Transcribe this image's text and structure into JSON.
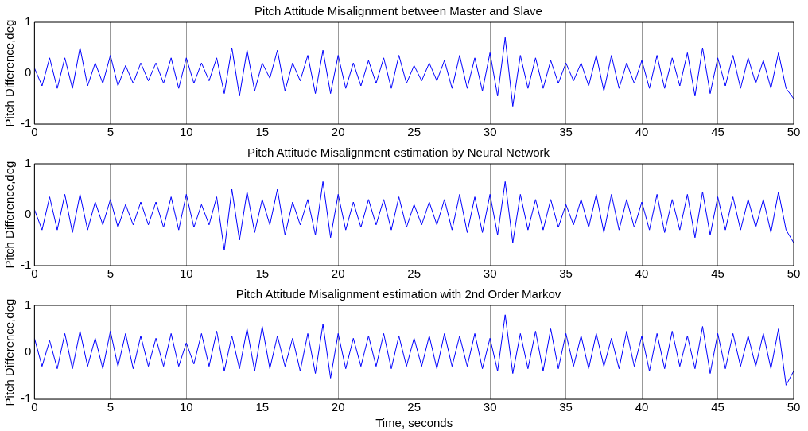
{
  "chart_data": [
    {
      "type": "line",
      "title": "Pitch Attitude Misalignment between Master and Slave",
      "ylabel": "Pitch Difference,deg",
      "grid": "x",
      "xlim": [
        0,
        50
      ],
      "xticks": [
        0,
        5,
        10,
        15,
        20,
        25,
        30,
        35,
        40,
        45,
        50
      ],
      "ylim": [
        -1,
        1
      ],
      "yticks": [
        -1,
        0,
        1
      ],
      "x": [
        0,
        0.5,
        1,
        1.5,
        2,
        2.5,
        3,
        3.5,
        4,
        4.5,
        5,
        5.5,
        6,
        6.5,
        7,
        7.5,
        8,
        8.5,
        9,
        9.5,
        10,
        10.5,
        11,
        11.5,
        12,
        12.5,
        13,
        13.5,
        14,
        14.5,
        15,
        15.5,
        16,
        16.5,
        17,
        17.5,
        18,
        18.5,
        19,
        19.5,
        20,
        20.5,
        21,
        21.5,
        22,
        22.5,
        23,
        23.5,
        24,
        24.5,
        25,
        25.5,
        26,
        26.5,
        27,
        27.5,
        28,
        28.5,
        29,
        29.5,
        30,
        30.5,
        31,
        31.5,
        32,
        32.5,
        33,
        33.5,
        34,
        34.5,
        35,
        35.5,
        36,
        36.5,
        37,
        37.5,
        38,
        38.5,
        39,
        39.5,
        40,
        40.5,
        41,
        41.5,
        42,
        42.5,
        43,
        43.5,
        44,
        44.5,
        45,
        45.5,
        46,
        46.5,
        47,
        47.5,
        48,
        48.5,
        49,
        49.5,
        50
      ],
      "series": [
        {
          "color": "#0000ff",
          "values": [
            0.1,
            -0.25,
            0.3,
            -0.3,
            0.3,
            -0.3,
            0.5,
            -0.25,
            0.2,
            -0.2,
            0.35,
            -0.25,
            0.15,
            -0.2,
            0.2,
            -0.15,
            0.2,
            -0.2,
            0.3,
            -0.3,
            0.3,
            -0.2,
            0.2,
            -0.15,
            0.3,
            -0.4,
            0.5,
            -0.45,
            0.45,
            -0.35,
            0.2,
            -0.1,
            0.45,
            -0.35,
            0.2,
            -0.15,
            0.35,
            -0.4,
            0.45,
            -0.4,
            0.35,
            -0.3,
            0.2,
            -0.25,
            0.25,
            -0.2,
            0.3,
            -0.3,
            0.35,
            -0.2,
            0.15,
            -0.15,
            0.2,
            -0.15,
            0.25,
            -0.3,
            0.35,
            -0.3,
            0.3,
            -0.35,
            0.4,
            -0.45,
            0.7,
            -0.65,
            0.35,
            -0.3,
            0.3,
            -0.3,
            0.25,
            -0.2,
            0.2,
            -0.15,
            0.2,
            -0.25,
            0.35,
            -0.35,
            0.35,
            -0.3,
            0.2,
            -0.2,
            0.25,
            -0.3,
            0.35,
            -0.3,
            0.3,
            -0.25,
            0.4,
            -0.45,
            0.5,
            -0.4,
            0.3,
            -0.25,
            0.35,
            -0.3,
            0.3,
            -0.2,
            0.25,
            -0.3,
            0.4,
            -0.3,
            -0.5
          ]
        }
      ]
    },
    {
      "type": "line",
      "title": "Pitch Attitude Misalignment estimation by Neural Network",
      "ylabel": "Pitch Difference,deg",
      "grid": "x",
      "xlim": [
        0,
        50
      ],
      "xticks": [
        0,
        5,
        10,
        15,
        20,
        25,
        30,
        35,
        40,
        45,
        50
      ],
      "ylim": [
        -1,
        1
      ],
      "yticks": [
        -1,
        0,
        1
      ],
      "x": [
        0,
        0.5,
        1,
        1.5,
        2,
        2.5,
        3,
        3.5,
        4,
        4.5,
        5,
        5.5,
        6,
        6.5,
        7,
        7.5,
        8,
        8.5,
        9,
        9.5,
        10,
        10.5,
        11,
        11.5,
        12,
        12.5,
        13,
        13.5,
        14,
        14.5,
        15,
        15.5,
        16,
        16.5,
        17,
        17.5,
        18,
        18.5,
        19,
        19.5,
        20,
        20.5,
        21,
        21.5,
        22,
        22.5,
        23,
        23.5,
        24,
        24.5,
        25,
        25.5,
        26,
        26.5,
        27,
        27.5,
        28,
        28.5,
        29,
        29.5,
        30,
        30.5,
        31,
        31.5,
        32,
        32.5,
        33,
        33.5,
        34,
        34.5,
        35,
        35.5,
        36,
        36.5,
        37,
        37.5,
        38,
        38.5,
        39,
        39.5,
        40,
        40.5,
        41,
        41.5,
        42,
        42.5,
        43,
        43.5,
        44,
        44.5,
        45,
        45.5,
        46,
        46.5,
        47,
        47.5,
        48,
        48.5,
        49,
        49.5,
        50
      ],
      "series": [
        {
          "color": "#0000ff",
          "values": [
            0.1,
            -0.3,
            0.35,
            -0.3,
            0.4,
            -0.35,
            0.4,
            -0.3,
            0.25,
            -0.2,
            0.3,
            -0.25,
            0.2,
            -0.2,
            0.25,
            -0.2,
            0.25,
            -0.25,
            0.35,
            -0.3,
            0.4,
            -0.25,
            0.2,
            -0.2,
            0.35,
            -0.7,
            0.5,
            -0.5,
            0.45,
            -0.35,
            0.3,
            -0.2,
            0.5,
            -0.4,
            0.25,
            -0.2,
            0.3,
            -0.4,
            0.65,
            -0.45,
            0.4,
            -0.3,
            0.25,
            -0.25,
            0.3,
            -0.2,
            0.3,
            -0.3,
            0.35,
            -0.25,
            0.2,
            -0.2,
            0.25,
            -0.2,
            0.3,
            -0.3,
            0.4,
            -0.35,
            0.35,
            -0.35,
            0.4,
            -0.4,
            0.65,
            -0.55,
            0.4,
            -0.3,
            0.3,
            -0.3,
            0.3,
            -0.25,
            0.2,
            -0.2,
            0.3,
            -0.25,
            0.4,
            -0.35,
            0.4,
            -0.3,
            0.3,
            -0.25,
            0.25,
            -0.3,
            0.4,
            -0.35,
            0.3,
            -0.3,
            0.4,
            -0.45,
            0.45,
            -0.4,
            0.35,
            -0.3,
            0.35,
            -0.3,
            0.3,
            -0.25,
            0.3,
            -0.35,
            0.45,
            -0.3,
            -0.55
          ]
        }
      ]
    },
    {
      "type": "line",
      "title": "Pitch Attitude Misalignment estimation with 2nd Order Markov",
      "ylabel": "Pitch Difference,deg",
      "xlabel": "Time, seconds",
      "grid": "x",
      "xlim": [
        0,
        50
      ],
      "xticks": [
        0,
        5,
        10,
        15,
        20,
        25,
        30,
        35,
        40,
        45,
        50
      ],
      "ylim": [
        -1,
        1
      ],
      "yticks": [
        -1,
        0,
        1
      ],
      "x": [
        0,
        0.5,
        1,
        1.5,
        2,
        2.5,
        3,
        3.5,
        4,
        4.5,
        5,
        5.5,
        6,
        6.5,
        7,
        7.5,
        8,
        8.5,
        9,
        9.5,
        10,
        10.5,
        11,
        11.5,
        12,
        12.5,
        13,
        13.5,
        14,
        14.5,
        15,
        15.5,
        16,
        16.5,
        17,
        17.5,
        18,
        18.5,
        19,
        19.5,
        20,
        20.5,
        21,
        21.5,
        22,
        22.5,
        23,
        23.5,
        24,
        24.5,
        25,
        25.5,
        26,
        26.5,
        27,
        27.5,
        28,
        28.5,
        29,
        29.5,
        30,
        30.5,
        31,
        31.5,
        32,
        32.5,
        33,
        33.5,
        34,
        34.5,
        35,
        35.5,
        36,
        36.5,
        37,
        37.5,
        38,
        38.5,
        39,
        39.5,
        40,
        40.5,
        41,
        41.5,
        42,
        42.5,
        43,
        43.5,
        44,
        44.5,
        45,
        45.5,
        46,
        46.5,
        47,
        47.5,
        48,
        48.5,
        49,
        49.5,
        50
      ],
      "series": [
        {
          "color": "#0000ff",
          "values": [
            0.3,
            -0.3,
            0.25,
            -0.35,
            0.4,
            -0.35,
            0.45,
            -0.3,
            0.3,
            -0.35,
            0.45,
            -0.3,
            0.4,
            -0.35,
            0.35,
            -0.3,
            0.3,
            -0.3,
            0.4,
            -0.3,
            0.2,
            -0.25,
            0.4,
            -0.3,
            0.45,
            -0.4,
            0.35,
            -0.35,
            0.5,
            -0.4,
            0.55,
            -0.35,
            0.35,
            -0.3,
            0.3,
            -0.4,
            0.4,
            -0.45,
            0.6,
            -0.55,
            0.4,
            -0.35,
            0.3,
            -0.3,
            0.35,
            -0.3,
            0.4,
            -0.35,
            0.35,
            -0.3,
            0.3,
            -0.3,
            0.35,
            -0.35,
            0.4,
            -0.3,
            0.35,
            -0.3,
            0.4,
            -0.35,
            0.3,
            -0.4,
            0.8,
            -0.45,
            0.4,
            -0.35,
            0.45,
            -0.4,
            0.5,
            -0.35,
            0.4,
            -0.3,
            0.35,
            -0.35,
            0.4,
            -0.3,
            0.3,
            -0.35,
            0.45,
            -0.3,
            0.35,
            -0.4,
            0.4,
            -0.35,
            0.45,
            -0.3,
            0.35,
            -0.35,
            0.55,
            -0.45,
            0.4,
            -0.35,
            0.4,
            -0.3,
            0.35,
            -0.3,
            0.4,
            -0.35,
            0.5,
            -0.7,
            -0.4
          ]
        }
      ]
    }
  ]
}
